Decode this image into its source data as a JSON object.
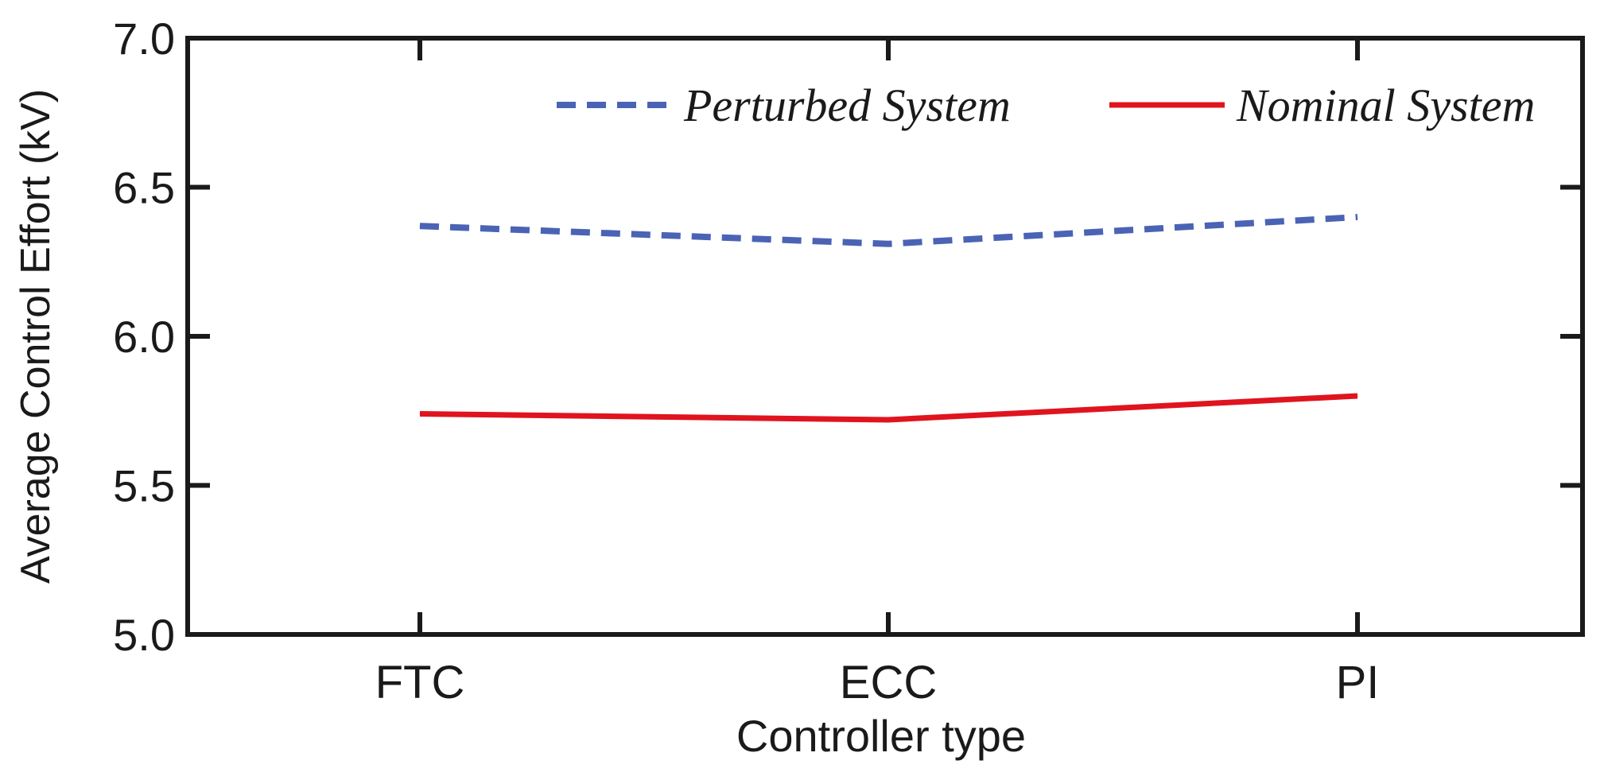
{
  "chart_data": {
    "type": "line",
    "title": "",
    "xlabel": "Controller type",
    "ylabel": "Average Control Effort (kV)",
    "categories": [
      "FTC",
      "ECC",
      "PI"
    ],
    "series": [
      {
        "name": "Perturbed System",
        "values": [
          6.37,
          6.31,
          6.4
        ],
        "color": "#4a63b5",
        "style": "dashed"
      },
      {
        "name": "Nominal System",
        "values": [
          5.74,
          5.72,
          5.8
        ],
        "color": "#e0141e",
        "style": "solid"
      }
    ],
    "ylim": [
      5.0,
      7.0
    ],
    "yticks": [
      5.0,
      5.5,
      6.0,
      6.5,
      7.0
    ],
    "ytick_labels": [
      "5.0",
      "5.5",
      "6.0",
      "6.5",
      "7.0"
    ],
    "grid": false,
    "legend_position": "top-right"
  }
}
